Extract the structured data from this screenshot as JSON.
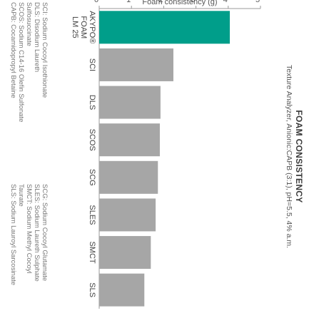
{
  "chart_data": {
    "type": "bar",
    "orientation": "vertical",
    "title": "FOAM CONSISTENCY",
    "subtitle": "Texture Analyzer, Anionic:CAPB (3:1), pH=5.5, 4% a.m.",
    "ylabel": "Foam consistency (g)",
    "xlabel": "",
    "ylim": [
      0,
      5
    ],
    "yticks": [
      "0",
      "1",
      "2",
      "3",
      "4",
      "5"
    ],
    "grid": false,
    "categories": [
      [
        "AKYPO®",
        "FOAM",
        "LM 25"
      ],
      [
        "SCI"
      ],
      [
        "DLS"
      ],
      [
        "SCOS"
      ],
      [
        "SCG"
      ],
      [
        "SLES"
      ],
      [
        "SMCT"
      ],
      [
        "SLS"
      ]
    ],
    "values": [
      4.05,
      2.3,
      1.9,
      1.88,
      1.82,
      1.75,
      1.6,
      1.4
    ],
    "colors": [
      "#009e8a",
      "#a6a6a6",
      "#a6a6a6",
      "#a6a6a6",
      "#a6a6a6",
      "#a6a6a6",
      "#a6a6a6",
      "#a6a6a6"
    ]
  },
  "legend": {
    "left": [
      "SCI: Sodium Cocoyl Isothionate",
      "DLS: Disodium Laureth",
      "Sulfosuccinate",
      "SCOS: Sodium C14-16 Olefin Sulfonate",
      "CAPB: Cocamidopropyl Betaine"
    ],
    "right": [
      "SCG: Sodium Cocoyl Glutamate",
      "SLES: Sodium Laureth Sulphate",
      "SMCT: Sodium Methyl Cocoyl",
      "Taurate",
      "SLS: Sodium Lauroyl Sarcosinate"
    ]
  }
}
